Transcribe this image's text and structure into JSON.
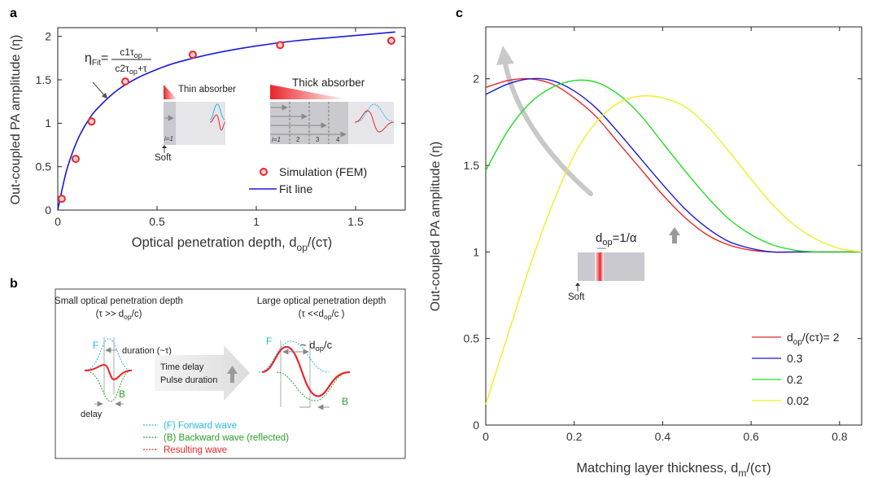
{
  "panels": {
    "a": "a",
    "b": "b",
    "c": "c"
  },
  "colors": {
    "fit_line": "#1a1adc",
    "marker": "#e8262b",
    "forward": "#28b7e0",
    "backward": "#2aa02a",
    "resulting": "#e8262b",
    "red_series": "#e8262b",
    "blue_series": "#1a1ad8",
    "green_series": "#22dd22",
    "yellow_series": "#eeee22",
    "arrow_gray": "#bbbbbb",
    "absorber_gray": "#c9c9cf"
  },
  "panel_a": {
    "fit_formula": {
      "eta": "η",
      "fit_sub": "Fit",
      "equals": "=",
      "numerator": "c1τ",
      "numerator_sub": "op",
      "denominator": "c2τ",
      "denominator_sub": "op",
      "denominator_tail": "+τ"
    },
    "inset": {
      "thin_label": "Thin absorber",
      "thick_label": "Thick absorber",
      "soft_label": "Soft",
      "thin_index": "i=1",
      "thick_indices": [
        "i=1",
        "2",
        "3",
        "4"
      ]
    }
  },
  "panel_b": {
    "left_heading": "Small optical penetration depth",
    "left_condition": "(τ >> d",
    "left_condition_sub": "op",
    "left_condition_tail": "/c)",
    "right_heading": "Large optical penetration depth",
    "right_condition": "(τ <<d",
    "right_condition_sub": "op",
    "right_condition_tail": "/c )",
    "duration_label": "duration (~τ)",
    "delay_label": "delay",
    "F": "F",
    "B": "B",
    "arrow_line1": "Time delay",
    "arrow_line2": "Pulse duration",
    "right_annot_prefix": "~ d",
    "right_annot_sub": "op",
    "right_annot_suffix": "/c",
    "legend": [
      {
        "label": "(F) Forward wave",
        "color": "#28b7e0"
      },
      {
        "label": "(B) Backward wave (reflected)",
        "color": "#2aa02a"
      },
      {
        "label": "Resulting wave",
        "color": "#e8262b"
      }
    ]
  },
  "panel_c": {
    "inset_label": "d",
    "inset_sub": "op",
    "inset_tail": "=1/α",
    "soft_label": "Soft"
  },
  "chart_data": [
    {
      "panel": "a",
      "type": "scatter",
      "xlabel_main": "Optical penetration depth, d",
      "xlabel_sub": "op",
      "xlabel_tail": "/(cτ)",
      "ylabel": "Out-coupled PA amplitude (η)",
      "xlim": [
        0,
        1.75
      ],
      "ylim": [
        0,
        2.1
      ],
      "xticks": [
        0,
        0.5,
        1,
        1.5
      ],
      "xtick_labels": [
        "0",
        "0.5",
        "1",
        "1.5"
      ],
      "yticks": [
        0,
        0.5,
        1,
        1.5,
        2
      ],
      "ytick_labels": [
        "0",
        "0.5",
        "1",
        "1.5",
        "2"
      ],
      "grid": false,
      "legend_position": "bottom-right",
      "series": [
        {
          "name": "Simulation (FEM)",
          "kind": "markers",
          "x": [
            0.02,
            0.09,
            0.17,
            0.34,
            0.68,
            1.12,
            1.68
          ],
          "y": [
            0.13,
            0.59,
            1.02,
            1.48,
            1.79,
            1.9,
            1.95
          ]
        },
        {
          "name": "Fit line",
          "kind": "line",
          "x": [
            0.0,
            0.02,
            0.05,
            0.1,
            0.15,
            0.2,
            0.3,
            0.4,
            0.5,
            0.6,
            0.8,
            1.0,
            1.2,
            1.4,
            1.6,
            1.7
          ],
          "y": [
            0.0,
            0.22,
            0.5,
            0.81,
            1.02,
            1.17,
            1.38,
            1.52,
            1.62,
            1.7,
            1.81,
            1.89,
            1.95,
            1.99,
            2.03,
            2.05
          ]
        }
      ]
    },
    {
      "panel": "c",
      "type": "line",
      "xlabel_main": "Matching layer thickness, d",
      "xlabel_sub": "m",
      "xlabel_tail": "/(cτ)",
      "ylabel": "Out-coupled PA amplitude (η)",
      "xlim": [
        0,
        0.85
      ],
      "ylim": [
        0,
        2.3
      ],
      "xticks": [
        0,
        0.2,
        0.4,
        0.6,
        0.8
      ],
      "xtick_labels": [
        "0",
        "0.2",
        "0.4",
        "0.6",
        "0.8"
      ],
      "yticks": [
        0,
        0.5,
        1,
        1.5,
        2
      ],
      "ytick_labels": [
        "0",
        "0.5",
        "1",
        "1.5",
        "2"
      ],
      "grid": false,
      "legend_position": "bottom-right",
      "legend_first_prefix": "d",
      "legend_first_sub": "op",
      "legend_first_tail": "/(cτ)= 2",
      "series": [
        {
          "name": "2",
          "color": "#e8262b",
          "x": [
            0,
            0.05,
            0.1,
            0.15,
            0.2,
            0.25,
            0.3,
            0.35,
            0.4,
            0.45,
            0.5,
            0.55,
            0.6,
            0.65,
            0.7,
            0.75,
            0.8,
            0.85
          ],
          "y": [
            1.95,
            1.99,
            2.0,
            1.97,
            1.89,
            1.78,
            1.63,
            1.48,
            1.33,
            1.2,
            1.1,
            1.04,
            1.01,
            1.0,
            1.0,
            1.0,
            1.0,
            1.0
          ]
        },
        {
          "name": "0.3",
          "color": "#1a1ad8",
          "x": [
            0,
            0.05,
            0.1,
            0.15,
            0.2,
            0.25,
            0.3,
            0.35,
            0.4,
            0.45,
            0.5,
            0.55,
            0.6,
            0.65,
            0.7,
            0.75,
            0.8,
            0.85
          ],
          "y": [
            1.91,
            1.97,
            2.0,
            1.99,
            1.93,
            1.83,
            1.69,
            1.54,
            1.39,
            1.25,
            1.14,
            1.06,
            1.02,
            1.0,
            1.0,
            1.0,
            1.0,
            1.0
          ]
        },
        {
          "name": "0.2",
          "color": "#22dd22",
          "x": [
            0,
            0.05,
            0.1,
            0.15,
            0.2,
            0.25,
            0.3,
            0.35,
            0.4,
            0.45,
            0.5,
            0.55,
            0.6,
            0.65,
            0.7,
            0.75,
            0.8,
            0.85
          ],
          "y": [
            1.47,
            1.7,
            1.86,
            1.95,
            1.99,
            1.98,
            1.91,
            1.79,
            1.63,
            1.47,
            1.32,
            1.19,
            1.1,
            1.04,
            1.01,
            1.0,
            1.0,
            1.0
          ]
        },
        {
          "name": "0.02",
          "color": "#eeee22",
          "x": [
            0,
            0.05,
            0.1,
            0.15,
            0.2,
            0.25,
            0.3,
            0.35,
            0.4,
            0.45,
            0.5,
            0.55,
            0.6,
            0.65,
            0.7,
            0.75,
            0.8,
            0.85
          ],
          "y": [
            0.12,
            0.52,
            0.92,
            1.27,
            1.56,
            1.75,
            1.86,
            1.9,
            1.89,
            1.84,
            1.73,
            1.58,
            1.42,
            1.27,
            1.15,
            1.07,
            1.02,
            1.0
          ]
        }
      ]
    }
  ]
}
